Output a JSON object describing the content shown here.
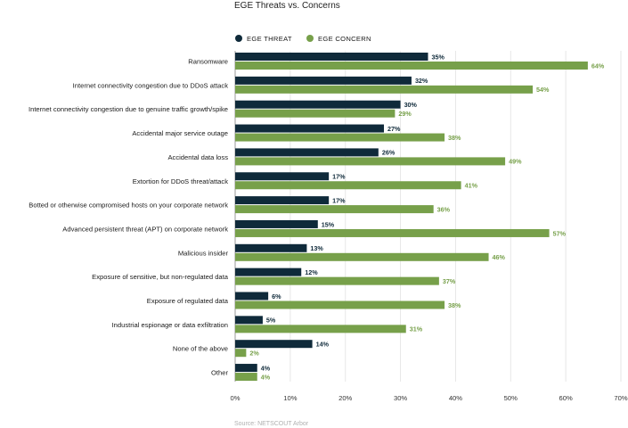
{
  "chart_data": {
    "type": "bar",
    "orientation": "horizontal",
    "title": "EGE Threats vs. Concerns",
    "categories": [
      "Ransomware",
      "Internet connectivity congestion due to DDoS attack",
      "Internet connectivity congestion due to genuine traffic growth/spike",
      "Accidental major service outage",
      "Accidental data loss",
      "Extortion for DDoS threat/attack",
      "Botted or otherwise compromised hosts on your corporate network",
      "Advanced persistent threat (APT) on corporate network",
      "Malicious insider",
      "Exposure of sensitive, but non-regulated data",
      "Exposure of regulated data",
      "Industrial espionage or data exfiltration",
      "None of the above",
      "Other"
    ],
    "series": [
      {
        "name": "EGE THREAT",
        "color": "#0f2a3a",
        "values": [
          35,
          32,
          30,
          27,
          26,
          17,
          17,
          15,
          13,
          12,
          6,
          5,
          14,
          4
        ]
      },
      {
        "name": "EGE CONCERN",
        "color": "#77a04a",
        "values": [
          64,
          54,
          29,
          38,
          49,
          41,
          36,
          57,
          46,
          37,
          38,
          31,
          2,
          4
        ]
      }
    ],
    "xlim": [
      0,
      70
    ],
    "x_ticks": [
      0,
      10,
      20,
      30,
      40,
      50,
      60,
      70
    ],
    "tick_suffix": "%",
    "value_suffix": "%",
    "legend_position": "top",
    "grid": "vertical",
    "source": "Source: NETSCOUT Arbor"
  }
}
